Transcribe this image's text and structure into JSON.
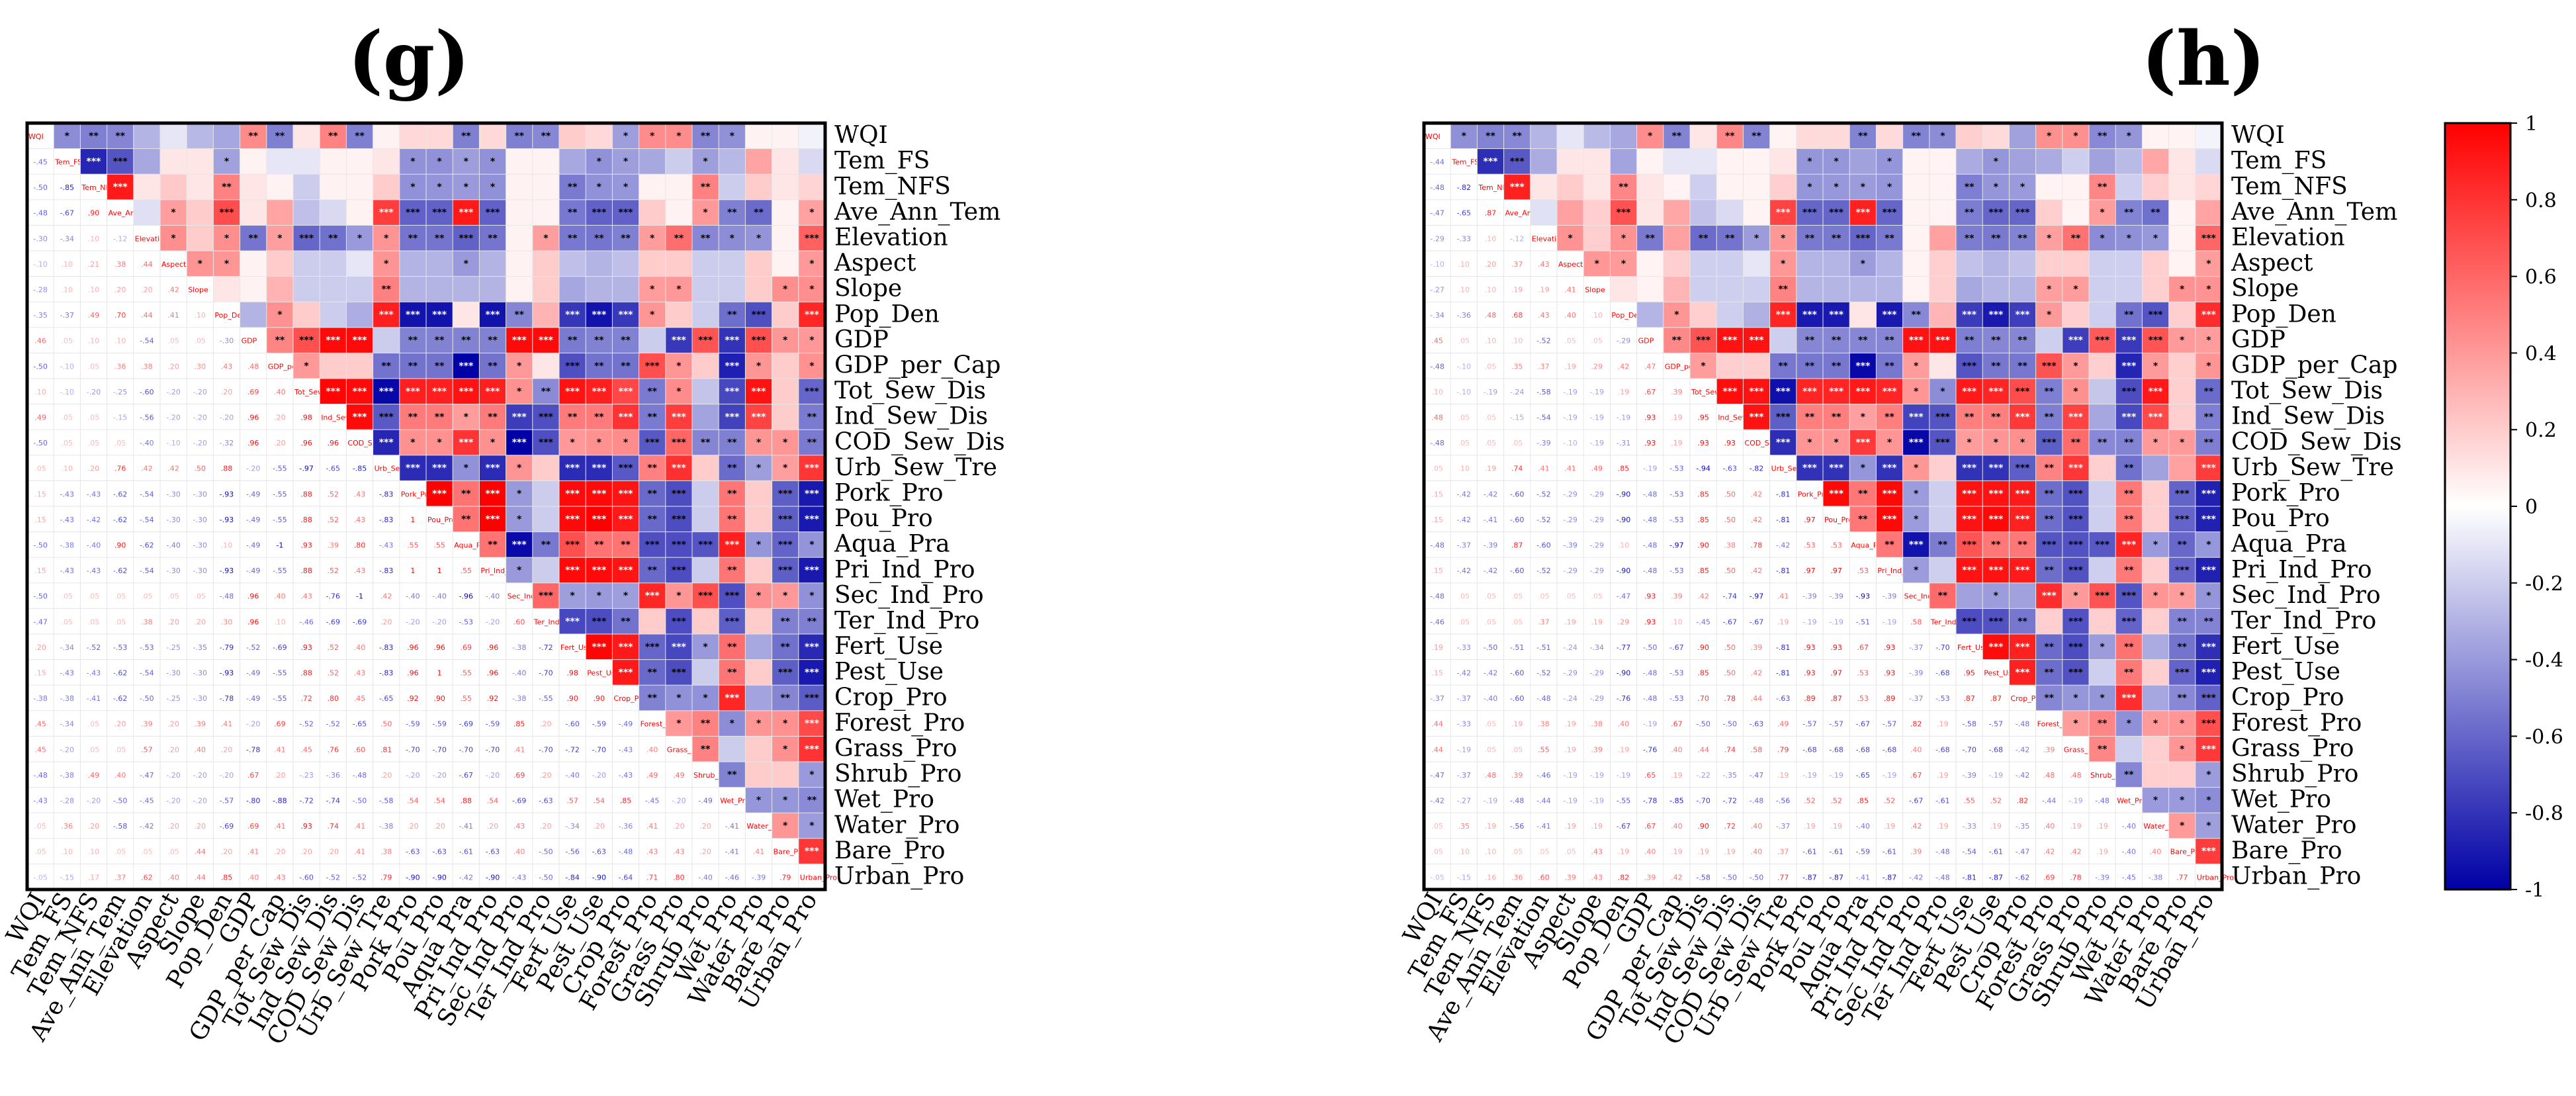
{
  "chart_data": [
    {
      "type": "heatmap",
      "title": "(g)",
      "variables": [
        "WQI",
        "Tem_FS",
        "Tem_NFS",
        "Ave_Ann_Tem",
        "Elevation",
        "Aspect",
        "Slope",
        "Pop_Den",
        "GDP",
        "GDP_per_Cap",
        "Tot_Sew_Dis",
        "Ind_Sew_Dis",
        "COD_Sew_Dis",
        "Urb_Sew_Tre",
        "Pork_Pro",
        "Pou_Pro",
        "Aqua_Pra",
        "Pri_Ind_Pro",
        "Sec_Ind_Pro",
        "Ter_Ind_Pro",
        "Fert_Use",
        "Pest_Use",
        "Crop_Pro",
        "Forest_Pro",
        "Grass_Pro",
        "Shrub_Pro",
        "Wet_Pro",
        "Water_Pro",
        "Bare_Pro",
        "Urban_Pro"
      ],
      "colorbar": false
    },
    {
      "type": "heatmap",
      "title": "(h)",
      "variables": [
        "WQI",
        "Tem_FS",
        "Tem_NFS",
        "Ave_Ann_Tem",
        "Elevation",
        "Aspect",
        "Slope",
        "Pop_Den",
        "GDP",
        "GDP_per_Cap",
        "Tot_Sew_Dis",
        "Ind_Sew_Dis",
        "COD_Sew_Dis",
        "Urb_Sew_Tre",
        "Pork_Pro",
        "Pou_Pro",
        "Aqua_Pra",
        "Pri_Ind_Pro",
        "Sec_Ind_Pro",
        "Ter_Ind_Pro",
        "Fert_Use",
        "Pest_Use",
        "Crop_Pro",
        "Forest_Pro",
        "Grass_Pro",
        "Shrub_Pro",
        "Wet_Pro",
        "Water_Pro",
        "Bare_Pro",
        "Urban_Pro"
      ],
      "colorbar": true,
      "colorbar_ticks": [
        "1",
        "0.8",
        "0.6",
        "0.4",
        "0.2",
        "0",
        "-0.2",
        "-0.4",
        "-0.6",
        "-0.8",
        "-1"
      ],
      "colorbar_range": [
        -1,
        1
      ]
    }
  ],
  "base_correlations": [
    [
      1.0,
      -0.45,
      -0.5,
      -0.48,
      -0.3,
      -0.1,
      -0.28,
      -0.35,
      0.46,
      -0.5,
      0.1,
      0.49,
      -0.5,
      0.05,
      0.15,
      0.15,
      -0.5,
      0.15,
      -0.5,
      -0.47,
      0.2,
      0.15,
      -0.38,
      0.45,
      0.45,
      -0.48,
      -0.43,
      0.05,
      0.05,
      -0.05
    ],
    [
      -0.45,
      1.0,
      -0.85,
      -0.67,
      -0.34,
      0.1,
      0.1,
      -0.37,
      0.05,
      -0.1,
      -0.1,
      0.05,
      0.05,
      0.1,
      -0.43,
      -0.43,
      -0.38,
      -0.43,
      0.05,
      0.05,
      -0.34,
      -0.43,
      -0.38,
      -0.34,
      -0.2,
      -0.38,
      -0.28,
      0.36,
      0.1,
      -0.15
    ],
    [
      -0.5,
      -0.85,
      1.0,
      0.9,
      0.1,
      0.21,
      0.1,
      0.49,
      0.1,
      0.05,
      -0.2,
      0.05,
      0.05,
      0.2,
      -0.43,
      -0.42,
      -0.4,
      -0.43,
      0.05,
      0.05,
      -0.52,
      -0.43,
      -0.41,
      0.05,
      0.05,
      0.49,
      -0.2,
      0.2,
      0.1,
      0.17
    ],
    [
      -0.48,
      -0.67,
      0.9,
      1.0,
      -0.12,
      0.38,
      0.2,
      0.7,
      0.1,
      0.36,
      -0.25,
      -0.15,
      0.05,
      0.76,
      -0.62,
      -0.62,
      0.9,
      -0.62,
      0.05,
      0.05,
      -0.53,
      -0.62,
      -0.62,
      0.2,
      0.05,
      0.4,
      -0.5,
      -0.58,
      0.05,
      0.37
    ],
    [
      -0.3,
      -0.34,
      0.1,
      -0.12,
      1.0,
      0.44,
      0.2,
      0.44,
      -0.54,
      0.38,
      -0.6,
      -0.56,
      -0.4,
      0.42,
      -0.54,
      -0.54,
      -0.62,
      -0.54,
      0.05,
      0.38,
      -0.53,
      -0.54,
      -0.5,
      0.39,
      0.57,
      -0.47,
      -0.45,
      -0.42,
      0.05,
      0.62
    ],
    [
      -0.1,
      0.1,
      0.21,
      0.38,
      0.44,
      1.0,
      0.42,
      0.41,
      0.05,
      0.2,
      -0.2,
      -0.2,
      -0.1,
      0.42,
      -0.3,
      -0.3,
      -0.4,
      -0.3,
      0.05,
      0.2,
      -0.25,
      -0.3,
      -0.25,
      0.2,
      0.2,
      -0.2,
      -0.2,
      0.2,
      0.05,
      0.4
    ],
    [
      -0.28,
      0.1,
      0.1,
      0.2,
      0.2,
      0.42,
      1.0,
      0.1,
      0.05,
      0.3,
      -0.2,
      -0.2,
      -0.2,
      0.5,
      -0.3,
      -0.3,
      -0.3,
      -0.3,
      0.05,
      0.2,
      -0.35,
      -0.3,
      -0.3,
      0.39,
      0.4,
      -0.2,
      -0.2,
      0.2,
      0.44,
      0.44
    ],
    [
      -0.35,
      -0.37,
      0.49,
      0.7,
      0.44,
      0.41,
      0.1,
      1.0,
      -0.3,
      0.43,
      0.2,
      -0.2,
      -0.32,
      0.88,
      -0.93,
      -0.93,
      0.1,
      -0.93,
      -0.48,
      0.3,
      -0.79,
      -0.93,
      -0.78,
      0.41,
      0.2,
      -0.2,
      -0.57,
      -0.69,
      0.2,
      0.85
    ],
    [
      0.46,
      0.05,
      0.1,
      0.1,
      -0.54,
      0.05,
      0.05,
      -0.3,
      1.0,
      0.48,
      0.69,
      0.96,
      0.96,
      -0.2,
      -0.49,
      -0.49,
      -0.49,
      -0.49,
      0.96,
      0.96,
      -0.52,
      -0.49,
      -0.49,
      -0.2,
      -0.78,
      0.67,
      -0.8,
      0.69,
      0.41,
      0.4
    ],
    [
      -0.5,
      -0.1,
      0.05,
      0.36,
      0.38,
      0.2,
      0.3,
      0.43,
      0.48,
      1.0,
      0.4,
      0.2,
      0.2,
      -0.55,
      -0.55,
      -0.55,
      -1.0,
      -0.55,
      0.4,
      0.1,
      -0.69,
      -0.55,
      -0.55,
      0.69,
      0.41,
      0.2,
      -0.88,
      0.41,
      0.2,
      0.43
    ],
    [
      0.1,
      -0.1,
      -0.2,
      -0.25,
      -0.6,
      -0.2,
      -0.2,
      0.2,
      0.69,
      0.4,
      1.0,
      0.98,
      0.96,
      -0.97,
      0.88,
      0.88,
      0.93,
      0.88,
      0.43,
      -0.46,
      0.93,
      0.88,
      0.72,
      -0.52,
      0.45,
      -0.23,
      -0.72,
      0.93,
      0.2,
      -0.6
    ],
    [
      0.49,
      0.05,
      0.05,
      -0.15,
      -0.56,
      -0.2,
      -0.2,
      -0.2,
      0.96,
      0.2,
      0.98,
      1.0,
      0.96,
      -0.65,
      0.52,
      0.52,
      0.39,
      0.52,
      -0.76,
      -0.69,
      0.52,
      0.52,
      0.8,
      -0.52,
      0.76,
      -0.36,
      -0.74,
      0.74,
      0.2,
      -0.52
    ],
    [
      -0.5,
      0.05,
      0.05,
      0.05,
      -0.4,
      -0.1,
      -0.2,
      -0.32,
      0.96,
      0.2,
      0.96,
      0.96,
      1.0,
      -0.85,
      0.43,
      0.43,
      0.8,
      0.43,
      -1.0,
      -0.69,
      0.4,
      0.43,
      0.45,
      -0.65,
      0.6,
      -0.48,
      -0.5,
      0.41,
      0.41,
      -0.52
    ],
    [
      0.05,
      0.1,
      0.2,
      0.76,
      0.42,
      0.42,
      0.5,
      0.88,
      -0.2,
      -0.55,
      -0.97,
      -0.65,
      -0.85,
      1.0,
      -0.83,
      -0.83,
      -0.43,
      -0.83,
      0.42,
      0.2,
      -0.83,
      -0.83,
      -0.65,
      0.5,
      0.81,
      0.2,
      -0.58,
      -0.38,
      0.38,
      0.79
    ],
    [
      0.15,
      -0.43,
      -0.43,
      -0.62,
      -0.54,
      -0.3,
      -0.3,
      -0.93,
      -0.49,
      -0.55,
      0.88,
      0.52,
      0.43,
      -0.83,
      1.0,
      1.0,
      0.55,
      1.0,
      -0.4,
      -0.2,
      0.96,
      0.96,
      0.92,
      -0.59,
      -0.7,
      -0.2,
      0.54,
      0.2,
      -0.63,
      -0.9
    ],
    [
      0.15,
      -0.43,
      -0.42,
      -0.62,
      -0.54,
      -0.3,
      -0.3,
      -0.93,
      -0.49,
      -0.55,
      0.88,
      0.52,
      0.43,
      -0.83,
      1.0,
      1.0,
      0.55,
      1.0,
      -0.4,
      -0.2,
      0.96,
      1.0,
      0.9,
      -0.59,
      -0.7,
      -0.2,
      0.54,
      0.2,
      -0.63,
      -0.9
    ],
    [
      -0.5,
      -0.38,
      -0.4,
      0.9,
      -0.62,
      -0.4,
      -0.3,
      0.1,
      -0.49,
      -1.0,
      0.93,
      0.39,
      0.8,
      -0.43,
      0.55,
      0.55,
      1.0,
      0.55,
      -0.96,
      -0.53,
      0.69,
      0.55,
      0.55,
      -0.69,
      -0.7,
      -0.67,
      0.88,
      -0.41,
      -0.61,
      -0.42
    ],
    [
      0.15,
      -0.43,
      -0.43,
      -0.62,
      -0.54,
      -0.3,
      -0.3,
      -0.93,
      -0.49,
      -0.55,
      0.88,
      0.52,
      0.43,
      -0.83,
      1.0,
      1.0,
      0.55,
      1.0,
      -0.4,
      -0.2,
      0.96,
      0.96,
      0.92,
      -0.59,
      -0.7,
      -0.2,
      0.54,
      0.2,
      -0.63,
      -0.9
    ],
    [
      -0.5,
      0.05,
      0.05,
      0.05,
      0.05,
      0.05,
      0.05,
      -0.48,
      0.96,
      0.4,
      0.43,
      -0.76,
      -1.0,
      0.42,
      -0.4,
      -0.4,
      -0.96,
      -0.4,
      1.0,
      0.6,
      -0.38,
      -0.4,
      -0.38,
      0.85,
      0.41,
      0.69,
      -0.69,
      0.43,
      0.4,
      -0.43
    ],
    [
      -0.47,
      0.05,
      0.05,
      0.05,
      0.38,
      0.2,
      0.2,
      0.3,
      0.96,
      0.1,
      -0.46,
      -0.69,
      -0.69,
      0.2,
      -0.2,
      -0.2,
      -0.53,
      -0.2,
      0.6,
      1.0,
      -0.72,
      -0.7,
      -0.55,
      0.2,
      -0.7,
      0.2,
      -0.63,
      0.2,
      -0.5,
      -0.5
    ],
    [
      0.2,
      -0.34,
      -0.52,
      -0.53,
      -0.53,
      -0.25,
      -0.35,
      -0.79,
      -0.52,
      -0.69,
      0.93,
      0.52,
      0.4,
      -0.83,
      0.96,
      0.96,
      0.69,
      0.96,
      -0.38,
      -0.72,
      1.0,
      0.98,
      0.9,
      -0.6,
      -0.72,
      -0.4,
      0.57,
      -0.34,
      -0.56,
      -0.84
    ],
    [
      0.15,
      -0.43,
      -0.43,
      -0.62,
      -0.54,
      -0.3,
      -0.3,
      -0.93,
      -0.49,
      -0.55,
      0.88,
      0.52,
      0.43,
      -0.83,
      0.96,
      1.0,
      0.55,
      0.96,
      -0.4,
      -0.7,
      0.98,
      1.0,
      0.9,
      -0.59,
      -0.7,
      -0.2,
      0.54,
      0.2,
      -0.63,
      -0.9
    ],
    [
      -0.38,
      -0.38,
      -0.41,
      -0.62,
      -0.5,
      -0.25,
      -0.3,
      -0.78,
      -0.49,
      -0.55,
      0.72,
      0.8,
      0.45,
      -0.65,
      0.92,
      0.9,
      0.55,
      0.92,
      -0.38,
      -0.55,
      0.9,
      0.9,
      1.0,
      -0.49,
      -0.43,
      -0.43,
      0.85,
      -0.36,
      -0.48,
      -0.64
    ],
    [
      0.45,
      -0.34,
      0.05,
      0.2,
      0.39,
      0.2,
      0.39,
      0.41,
      -0.2,
      0.69,
      -0.52,
      -0.52,
      -0.65,
      0.5,
      -0.59,
      -0.59,
      -0.69,
      -0.59,
      0.85,
      0.2,
      -0.6,
      -0.59,
      -0.49,
      1.0,
      0.4,
      0.49,
      -0.45,
      0.41,
      0.43,
      0.71
    ],
    [
      0.45,
      -0.2,
      0.05,
      0.05,
      0.57,
      0.2,
      0.4,
      0.2,
      -0.78,
      0.41,
      0.45,
      0.76,
      0.6,
      0.81,
      -0.7,
      -0.7,
      -0.7,
      -0.7,
      0.41,
      -0.7,
      -0.72,
      -0.7,
      -0.43,
      0.4,
      1.0,
      0.49,
      -0.2,
      0.2,
      0.43,
      0.8
    ],
    [
      -0.48,
      -0.38,
      0.49,
      0.4,
      -0.47,
      -0.2,
      -0.2,
      -0.2,
      0.67,
      0.2,
      -0.23,
      -0.36,
      -0.48,
      0.2,
      -0.2,
      -0.2,
      -0.67,
      -0.2,
      0.69,
      0.2,
      -0.4,
      -0.2,
      -0.43,
      0.49,
      0.49,
      1.0,
      -0.49,
      0.2,
      0.2,
      -0.4
    ],
    [
      -0.43,
      -0.28,
      -0.2,
      -0.5,
      -0.45,
      -0.2,
      -0.2,
      -0.57,
      -0.8,
      -0.88,
      -0.72,
      -0.74,
      -0.5,
      -0.58,
      0.54,
      0.54,
      0.88,
      0.54,
      -0.69,
      -0.63,
      0.57,
      0.54,
      0.85,
      -0.45,
      -0.2,
      -0.49,
      1.0,
      -0.41,
      -0.41,
      -0.46
    ],
    [
      0.05,
      0.36,
      0.2,
      -0.58,
      -0.42,
      0.2,
      0.2,
      -0.69,
      0.69,
      0.41,
      0.93,
      0.74,
      0.41,
      -0.38,
      0.2,
      0.2,
      -0.41,
      0.2,
      0.43,
      0.2,
      -0.34,
      0.2,
      -0.36,
      0.41,
      0.2,
      0.2,
      -0.41,
      1.0,
      0.41,
      -0.39
    ],
    [
      0.05,
      0.1,
      0.1,
      0.05,
      0.05,
      0.05,
      0.44,
      0.2,
      0.41,
      0.2,
      0.2,
      0.2,
      0.41,
      0.38,
      -0.63,
      -0.63,
      -0.61,
      -0.63,
      0.4,
      -0.5,
      -0.56,
      -0.63,
      -0.48,
      0.43,
      0.43,
      0.2,
      -0.41,
      0.41,
      1.0,
      0.79
    ],
    [
      -0.05,
      -0.15,
      0.17,
      0.37,
      0.62,
      0.4,
      0.44,
      0.85,
      0.4,
      0.43,
      -0.6,
      -0.52,
      -0.52,
      0.79,
      -0.9,
      -0.9,
      -0.42,
      -0.9,
      -0.43,
      -0.5,
      -0.84,
      -0.9,
      -0.64,
      0.71,
      0.8,
      -0.4,
      -0.46,
      -0.39,
      0.79,
      1.0
    ]
  ]
}
